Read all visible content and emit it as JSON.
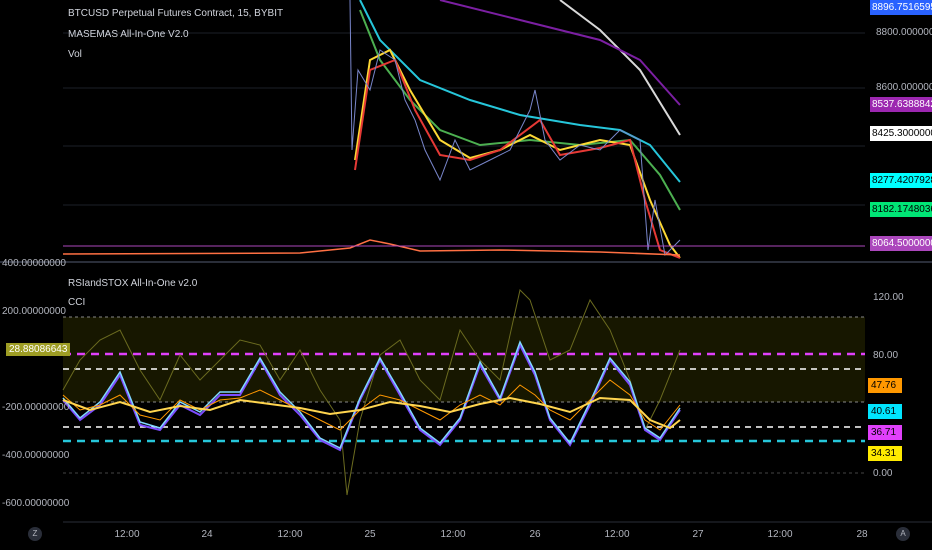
{
  "upper_pane": {
    "title": "BTCUSD Perpetual Futures Contract, 15, BYBIT",
    "indicator1": "MASEMAS All-In-One V2.0",
    "indicator2": "Vol",
    "price_axis": [
      "8800.00000000",
      "8600.00000000"
    ],
    "tags": {
      "top": "8896.75165956",
      "purple": "8537.63888423",
      "white": "8425.30000000",
      "cyan": "8277.42079283",
      "green": "8182.17480367",
      "current": "8064.50000000"
    },
    "colors": {
      "purple": "#9c27b0",
      "cyan": "#00ffff",
      "green": "#00e676",
      "violet": "#ab47bc",
      "blue": "#2962ff"
    }
  },
  "lower_pane": {
    "title": "RSIandSTOX All-In-One v2.0",
    "indicator2": "CCI",
    "left_axis": [
      "400.00000000",
      "200.00000000",
      "-200.00000000",
      "-400.00000000",
      "-600.00000000"
    ],
    "left_tag": "28.88086643",
    "right_axis": [
      "120.00",
      "80.00",
      "0.00"
    ],
    "right_tags": {
      "orange": "47.76",
      "cyan": "40.61",
      "magenta": "36.71",
      "yellow": "34.31"
    }
  },
  "time_axis": [
    "12:00",
    "24",
    "12:00",
    "25",
    "12:00",
    "26",
    "12:00",
    "27",
    "12:00",
    "28"
  ],
  "corner_left": "Z",
  "corner_right": "A"
}
